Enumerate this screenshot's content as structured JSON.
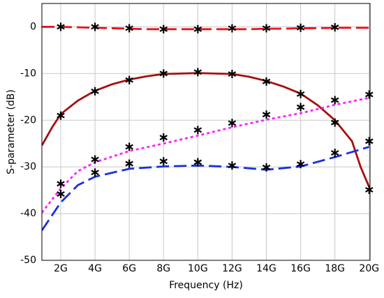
{
  "chart_data": {
    "type": "line",
    "x_label": "Frequency (Hz)",
    "y_label": "S-parameter (dB)",
    "xlim": [
      900000000.0,
      20050000000.0
    ],
    "ylim": [
      -50,
      5
    ],
    "xticks": [
      {
        "value": 2000000000.0,
        "label": "2G"
      },
      {
        "value": 4000000000.0,
        "label": "4G"
      },
      {
        "value": 6000000000.0,
        "label": "6G"
      },
      {
        "value": 8000000000.0,
        "label": "8G"
      },
      {
        "value": 10000000000.0,
        "label": "10G"
      },
      {
        "value": 12000000000.0,
        "label": "12G"
      },
      {
        "value": 14000000000.0,
        "label": "14G"
      },
      {
        "value": 16000000000.0,
        "label": "16G"
      },
      {
        "value": 18000000000.0,
        "label": "18G"
      },
      {
        "value": 20000000000.0,
        "label": "20G"
      }
    ],
    "yticks": [
      0,
      -10,
      -20,
      -30,
      -40,
      -50
    ],
    "grid": true,
    "series": [
      {
        "style": "line",
        "color": "#e8141c",
        "dash": "dashed",
        "x": [
          900000000.0,
          2000000000.0,
          3000000000.0,
          4000000000.0,
          5000000000.0,
          6000000000.0,
          7000000000.0,
          8000000000.0,
          9000000000.0,
          10000000000.0,
          11000000000.0,
          12000000000.0,
          13000000000.0,
          14000000000.0,
          15000000000.0,
          16000000000.0,
          17000000000.0,
          18000000000.0,
          19000000000.0,
          20000000000.0
        ],
        "values": [
          0,
          0,
          -0.1,
          -0.2,
          -0.3,
          -0.4,
          -0.5,
          -0.5,
          -0.5,
          -0.5,
          -0.5,
          -0.5,
          -0.5,
          -0.4,
          -0.4,
          -0.3,
          -0.3,
          -0.2,
          -0.2,
          -0.2
        ]
      },
      {
        "style": "line",
        "color": "#a50f0f",
        "dash": "solid",
        "x": [
          900000000.0,
          1500000000.0,
          2000000000.0,
          3000000000.0,
          4000000000.0,
          5000000000.0,
          6000000000.0,
          7000000000.0,
          8000000000.0,
          9000000000.0,
          10000000000.0,
          11000000000.0,
          12000000000.0,
          13000000000.0,
          14000000000.0,
          15000000000.0,
          16000000000.0,
          17000000000.0,
          18000000000.0,
          19000000000.0,
          19500000000.0,
          20000000000.0
        ],
        "values": [
          -25.4,
          -21.5,
          -18.7,
          -15.8,
          -13.7,
          -12.3,
          -11.3,
          -10.6,
          -10.1,
          -10.0,
          -9.9,
          -10.0,
          -10.1,
          -10.7,
          -11.6,
          -12.8,
          -14.3,
          -16.8,
          -20.0,
          -24.5,
          -30.0,
          -34.3
        ]
      },
      {
        "style": "line",
        "color": "#ff1fff",
        "dash": "dotted",
        "x": [
          900000000.0,
          2000000000.0,
          3000000000.0,
          4000000000.0,
          6000000000.0,
          8000000000.0,
          10000000000.0,
          12000000000.0,
          14000000000.0,
          16000000000.0,
          18000000000.0,
          20000000000.0
        ],
        "values": [
          -39.8,
          -34.6,
          -30.9,
          -29.0,
          -26.6,
          -25.0,
          -23.3,
          -21.5,
          -19.9,
          -18.5,
          -16.7,
          -15.2
        ]
      },
      {
        "style": "line",
        "color": "#1a2fe0",
        "dash": "dashed",
        "x": [
          900000000.0,
          2000000000.0,
          3000000000.0,
          4000000000.0,
          6000000000.0,
          8000000000.0,
          10000000000.0,
          12000000000.0,
          14000000000.0,
          16000000000.0,
          18000000000.0,
          20000000000.0
        ],
        "values": [
          -43.6,
          -37.6,
          -33.9,
          -32.1,
          -30.4,
          -29.9,
          -29.7,
          -30.0,
          -30.6,
          -29.9,
          -27.9,
          -25.7
        ]
      },
      {
        "style": "markers",
        "color": "#000000",
        "x": [
          2000000000.0,
          4000000000.0,
          6000000000.0,
          8000000000.0,
          10000000000.0,
          12000000000.0,
          14000000000.0,
          16000000000.0,
          18000000000.0
        ],
        "values": [
          0,
          0,
          -0.3,
          -0.5,
          -0.5,
          -0.3,
          -0.3,
          -0.2,
          -0.1
        ]
      },
      {
        "style": "markers",
        "color": "#000000",
        "x": [
          2000000000.0,
          4000000000.0,
          6000000000.0,
          8000000000.0,
          10000000000.0,
          12000000000.0,
          14000000000.0,
          16000000000.0,
          18000000000.0,
          20000000000.0
        ],
        "values": [
          -19.0,
          -13.8,
          -11.4,
          -10.0,
          -9.7,
          -10.1,
          -11.7,
          -14.4,
          -20.5,
          -34.9
        ]
      },
      {
        "style": "markers",
        "color": "#000000",
        "x": [
          2000000000.0,
          4000000000.0,
          6000000000.0,
          8000000000.0,
          10000000000.0,
          12000000000.0,
          14000000000.0,
          16000000000.0,
          18000000000.0,
          20000000000.0
        ],
        "values": [
          -33.6,
          -28.4,
          -25.7,
          -23.7,
          -22.1,
          -20.6,
          -18.8,
          -17.2,
          -15.7,
          -14.5
        ]
      },
      {
        "style": "markers",
        "color": "#000000",
        "x": [
          2000000000.0,
          4000000000.0,
          6000000000.0,
          8000000000.0,
          10000000000.0,
          12000000000.0,
          14000000000.0,
          16000000000.0,
          18000000000.0,
          20000000000.0
        ],
        "values": [
          -35.8,
          -31.2,
          -29.3,
          -28.8,
          -29.0,
          -29.7,
          -30.1,
          -29.4,
          -27.0,
          -24.5
        ]
      }
    ]
  }
}
